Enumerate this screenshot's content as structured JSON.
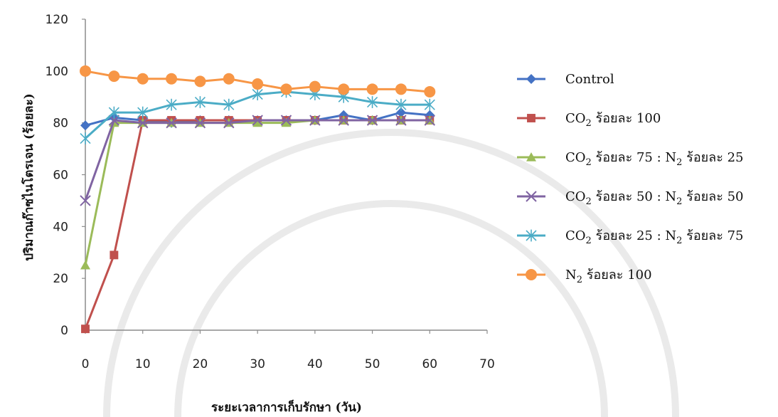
{
  "chart_data": {
    "type": "line",
    "title": "",
    "xlabel": "ระยะเวลาการเก็บรักษา (วัน)",
    "ylabel": "ปริมาณก๊าซไนโตรเจน (ร้อยละ)",
    "xlim": [
      0,
      70
    ],
    "ylim": [
      0,
      120
    ],
    "xticks": [
      "0",
      "10",
      "20",
      "30",
      "40",
      "50",
      "60",
      "70"
    ],
    "yticks": [
      "0",
      "20",
      "40",
      "60",
      "80",
      "100",
      "120"
    ],
    "grid": false,
    "legend_position": "right",
    "series": [
      {
        "name": "Control",
        "legend": {
          "pre": "Control"
        },
        "color": "#4472C4",
        "marker": "diamond",
        "x": [
          0,
          5,
          10,
          15,
          20,
          25,
          30,
          35,
          40,
          45,
          50,
          55,
          60
        ],
        "y": [
          79,
          82,
          81,
          80,
          81,
          81,
          81,
          81,
          81,
          83,
          81,
          84,
          83
        ]
      },
      {
        "name": "CO2 ร้อยละ 100",
        "legend": {
          "pre": "CO",
          "sub1": "2",
          "mid": " ร้อยละ 100"
        },
        "color": "#C0504D",
        "marker": "square",
        "x": [
          0,
          5,
          10,
          15,
          20,
          25,
          30,
          35,
          40,
          45,
          50,
          55,
          60
        ],
        "y": [
          0.5,
          29,
          81,
          81,
          81,
          81,
          81,
          81,
          81,
          81,
          81,
          81,
          81
        ]
      },
      {
        "name": "CO2 ร้อยละ 75 : N2 ร้อยละ 25",
        "legend": {
          "pre": "CO",
          "sub1": "2",
          "mid": " ร้อยละ 75 : N",
          "sub2": "2",
          "post": " ร้อยละ 25"
        },
        "color": "#9BBB59",
        "marker": "triangle",
        "x": [
          0,
          5,
          10,
          15,
          20,
          25,
          30,
          35,
          40,
          45,
          50,
          55,
          60
        ],
        "y": [
          25,
          80,
          80,
          80,
          80,
          80,
          80,
          80,
          81,
          81,
          81,
          81,
          81
        ]
      },
      {
        "name": "CO2 ร้อยละ 50 : N2 ร้อยละ 50",
        "legend": {
          "pre": "CO",
          "sub1": "2",
          "mid": " ร้อยละ 50 : N",
          "sub2": "2",
          "post": " ร้อยละ 50"
        },
        "color": "#8064A2",
        "marker": "x",
        "x": [
          0,
          5,
          10,
          15,
          20,
          25,
          30,
          35,
          40,
          45,
          50,
          55,
          60
        ],
        "y": [
          50,
          81,
          80,
          80,
          80,
          80,
          81,
          81,
          81,
          81,
          81,
          81,
          81
        ]
      },
      {
        "name": "CO2 ร้อยละ 25 : N2 ร้อยละ 75",
        "legend": {
          "pre": "CO",
          "sub1": "2",
          "mid": " ร้อยละ 25 : N",
          "sub2": "2",
          "post": " ร้อยละ 75"
        },
        "color": "#4BACC6",
        "marker": "star",
        "x": [
          0,
          5,
          10,
          15,
          20,
          25,
          30,
          35,
          40,
          45,
          50,
          55,
          60
        ],
        "y": [
          74,
          84,
          84,
          87,
          88,
          87,
          91,
          92,
          91,
          90,
          88,
          87,
          87
        ]
      },
      {
        "name": "N2 ร้อยละ 100",
        "legend": {
          "pre": "N",
          "sub1": "2",
          "mid": " ร้อยละ 100"
        },
        "color": "#F79646",
        "marker": "circle",
        "x": [
          0,
          5,
          10,
          15,
          20,
          25,
          30,
          35,
          40,
          45,
          50,
          55,
          60
        ],
        "y": [
          100,
          98,
          97,
          97,
          96,
          97,
          95,
          93,
          94,
          93,
          93,
          93,
          92
        ]
      }
    ]
  }
}
